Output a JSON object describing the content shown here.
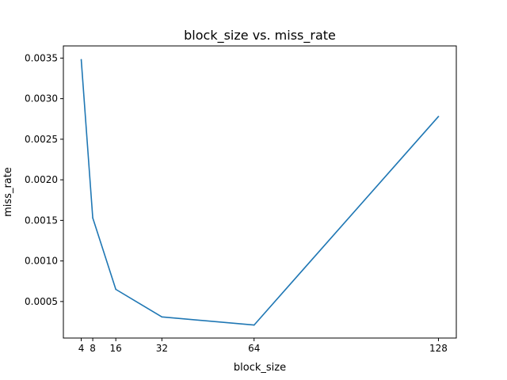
{
  "chart_data": {
    "type": "line",
    "title": "block_size vs. miss_rate",
    "xlabel": "block_size",
    "ylabel": "miss_rate",
    "x": [
      4,
      8,
      16,
      32,
      64,
      128
    ],
    "series": [
      {
        "values": [
          0.00348,
          0.00153,
          0.00065,
          0.00031,
          0.00021,
          0.00278
        ]
      }
    ],
    "xlim": [
      -2.2,
      134.2
    ],
    "ylim": [
      5e-05,
      0.00365
    ],
    "xticks": [
      4,
      8,
      16,
      32,
      64,
      128
    ],
    "xtick_labels": [
      "4",
      "8",
      "16",
      "32",
      "64",
      "128"
    ],
    "yticks": [
      0.0005,
      0.001,
      0.0015,
      0.002,
      0.0025,
      0.003,
      0.0035
    ],
    "ytick_labels": [
      "0.0005",
      "0.0010",
      "0.0015",
      "0.0020",
      "0.0025",
      "0.0030",
      "0.0035"
    ],
    "grid": false,
    "line_color": "#1f77b4"
  }
}
